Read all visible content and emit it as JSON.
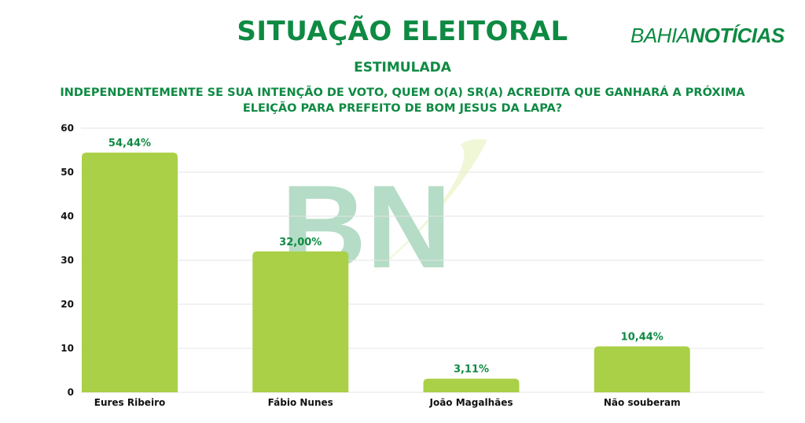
{
  "header": {
    "title": "SITUAÇÃO ELEITORAL",
    "subtitle": "ESTIMULADA",
    "question": "INDEPENDENTEMENTE SE SUA INTENÇÃO DE VOTO, QUEM O(A) SR(A) ACREDITA QUE GANHARÁ A PRÓXIMA ELEIÇÃO PARA PREFEITO DE BOM JESUS DA LAPA?",
    "logo_light": "BAHIA",
    "logo_bold": "NOTÍCIAS"
  },
  "chart_data": {
    "type": "bar",
    "categories": [
      "Eures Ribeiro",
      "Fábio Nunes",
      "João Magalhães",
      "Não souberam"
    ],
    "values": [
      54.44,
      32.0,
      3.11,
      10.44
    ],
    "data_labels": [
      "54,44%",
      "32,00%",
      "3,11%",
      "10,44%"
    ],
    "ylim": [
      0,
      60
    ],
    "yticks": [
      0,
      10,
      20,
      30,
      40,
      50,
      60
    ],
    "grid": true,
    "bar_color": "#a9d046",
    "label_color": "#0e8a43"
  },
  "colors": {
    "brand": "#0e8a43"
  },
  "watermark": "BN"
}
